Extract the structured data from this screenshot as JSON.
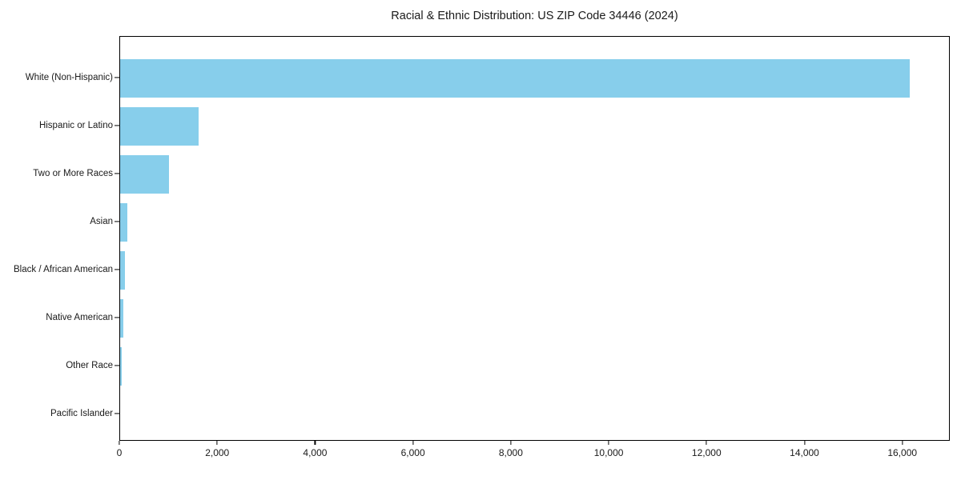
{
  "figure": {
    "background": "#ffffff"
  },
  "chart_data": {
    "type": "bar",
    "orientation": "horizontal",
    "title": "Racial & Ethnic Distribution: US ZIP Code 34446 (2024)",
    "categories": [
      "White (Non-Hispanic)",
      "Hispanic or Latino",
      "Two or More Races",
      "Asian",
      "Black / African American",
      "Native American",
      "Other Race",
      "Pacific Islander"
    ],
    "values": [
      16130,
      1600,
      1000,
      150,
      95,
      65,
      35,
      0
    ],
    "xlabel": "",
    "ylabel": "",
    "xlim": [
      0,
      16970
    ],
    "xticks": [
      {
        "value": 0,
        "label": "0"
      },
      {
        "value": 2000,
        "label": "2,000"
      },
      {
        "value": 4000,
        "label": "4,000"
      },
      {
        "value": 6000,
        "label": "6,000"
      },
      {
        "value": 8000,
        "label": "8,000"
      },
      {
        "value": 10000,
        "label": "10,000"
      },
      {
        "value": 12000,
        "label": "12,000"
      },
      {
        "value": 14000,
        "label": "14,000"
      },
      {
        "value": 16000,
        "label": "16,000"
      }
    ],
    "bar_color": "#87CEEB",
    "axis_color": "#000000",
    "text_color": "#1a1a1a",
    "grid": false,
    "legend_position": "none"
  }
}
